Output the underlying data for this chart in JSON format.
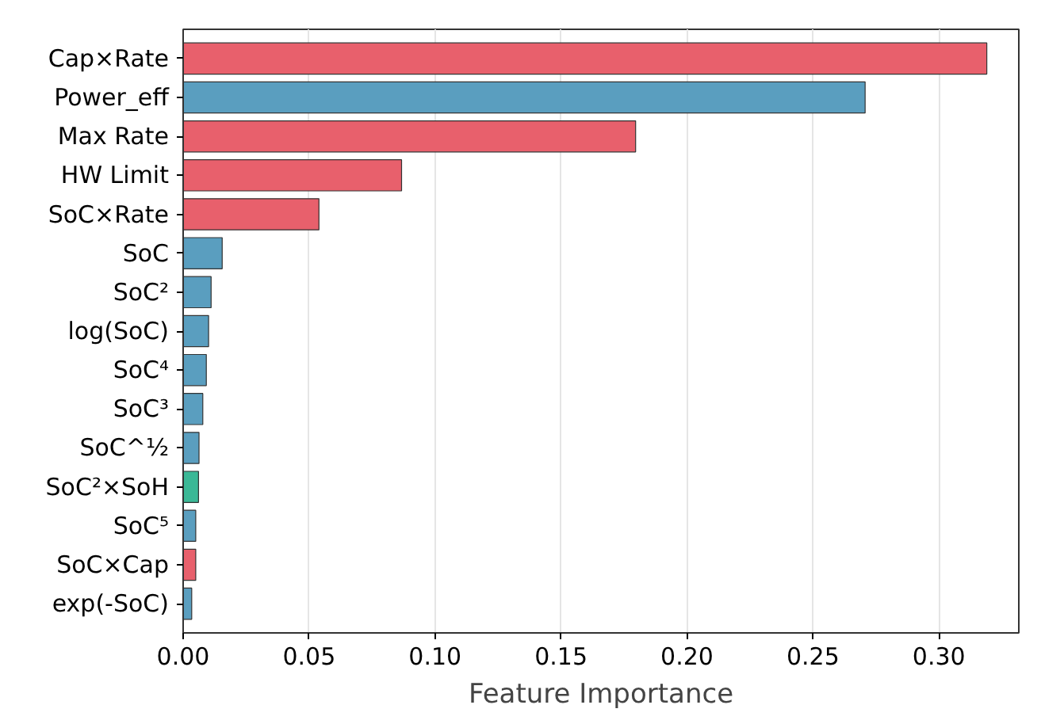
{
  "chart_data": {
    "type": "bar",
    "orientation": "horizontal",
    "xlabel": "Feature Importance",
    "categories": [
      "Cap×Rate",
      "Power_eff",
      "Max Rate",
      "HW Limit",
      "SoC×Rate",
      "SoC",
      "SoC²",
      "log(SoC)",
      "SoC⁴",
      "SoC³",
      "SoC^½",
      "SoC²×SoH",
      "SoC⁵",
      "SoC×Cap",
      "exp(-SoC)"
    ],
    "values": [
      0.319,
      0.2707,
      0.1796,
      0.0867,
      0.0539,
      0.0155,
      0.0111,
      0.0101,
      0.0092,
      0.0078,
      0.0063,
      0.0061,
      0.005,
      0.005,
      0.0034
    ],
    "colors": [
      "#e8606c",
      "#5a9ebf",
      "#e8606c",
      "#e8606c",
      "#e8606c",
      "#5a9ebf",
      "#5a9ebf",
      "#5a9ebf",
      "#5a9ebf",
      "#5a9ebf",
      "#5a9ebf",
      "#3bb896",
      "#5a9ebf",
      "#e8606c",
      "#5a9ebf"
    ],
    "xlim": [
      0,
      0.3317
    ],
    "xticks": [
      {
        "value": 0,
        "label": "0.00"
      },
      {
        "value": 0.05,
        "label": "0.05"
      },
      {
        "value": 0.1,
        "label": "0.10"
      },
      {
        "value": 0.15,
        "label": "0.15"
      },
      {
        "value": 0.2,
        "label": "0.20"
      },
      {
        "value": 0.25,
        "label": "0.25"
      },
      {
        "value": 0.3,
        "label": "0.30"
      }
    ],
    "grid": "x"
  }
}
